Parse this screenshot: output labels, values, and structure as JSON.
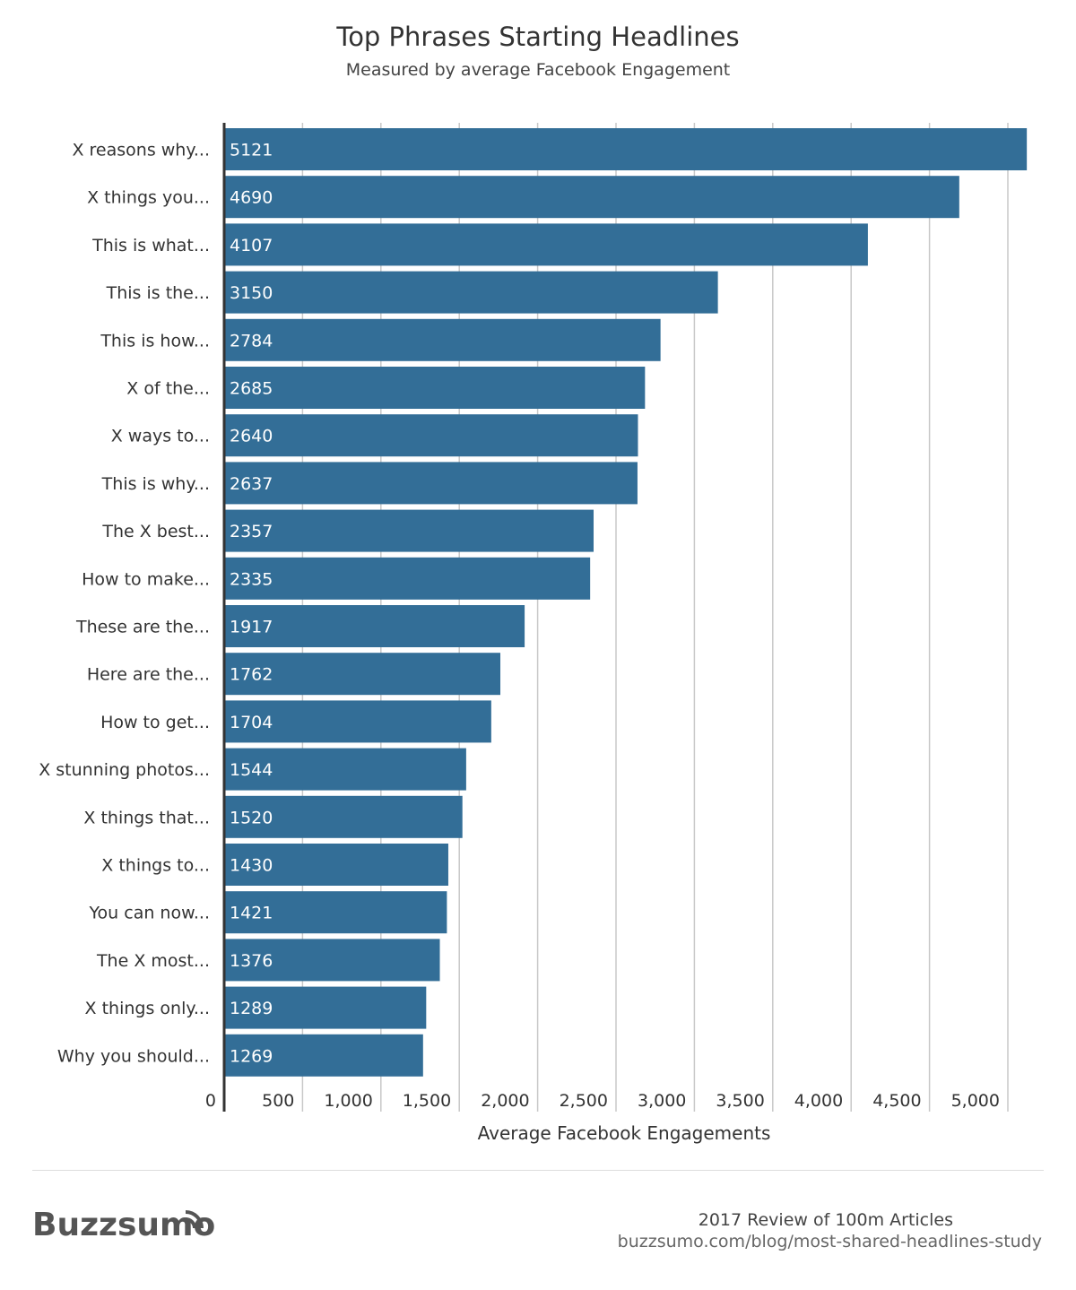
{
  "chart_data": {
    "type": "bar",
    "orientation": "horizontal",
    "title": "Top Phrases Starting Headlines",
    "subtitle": "Measured by average Facebook Engagement",
    "xlabel": "Average Facebook Engagements",
    "ylabel": "",
    "xlim": [
      0,
      5000
    ],
    "xticks": [
      0,
      500,
      1000,
      1500,
      2000,
      2500,
      3000,
      3500,
      4000,
      4500,
      5000
    ],
    "xtick_labels": [
      "0",
      "500",
      "1,000",
      "1,500",
      "2,000",
      "2,500",
      "3,000",
      "3,500",
      "4,000",
      "4,500",
      "5,000"
    ],
    "grid": "vertical",
    "bar_color": "#336e97",
    "categories": [
      "X reasons why...",
      "X things you...",
      "This is what...",
      "This is the...",
      "This is how...",
      "X of the...",
      "X ways to...",
      "This is why...",
      "The X best...",
      "How to make...",
      "These are the...",
      "Here are the...",
      "How to get...",
      "X stunning photos...",
      "X things that...",
      "X things to...",
      "You can now...",
      "The X most...",
      "X things only...",
      "Why you should..."
    ],
    "values": [
      5121,
      4690,
      4107,
      3150,
      2784,
      2685,
      2640,
      2637,
      2357,
      2335,
      1917,
      1762,
      1704,
      1544,
      1520,
      1430,
      1421,
      1376,
      1289,
      1269
    ]
  },
  "footer": {
    "logo": "Buzzsumo",
    "source_title": "2017 Review of 100m Articles",
    "source_url": "buzzsumo.com/blog/most-shared-headlines-study"
  }
}
